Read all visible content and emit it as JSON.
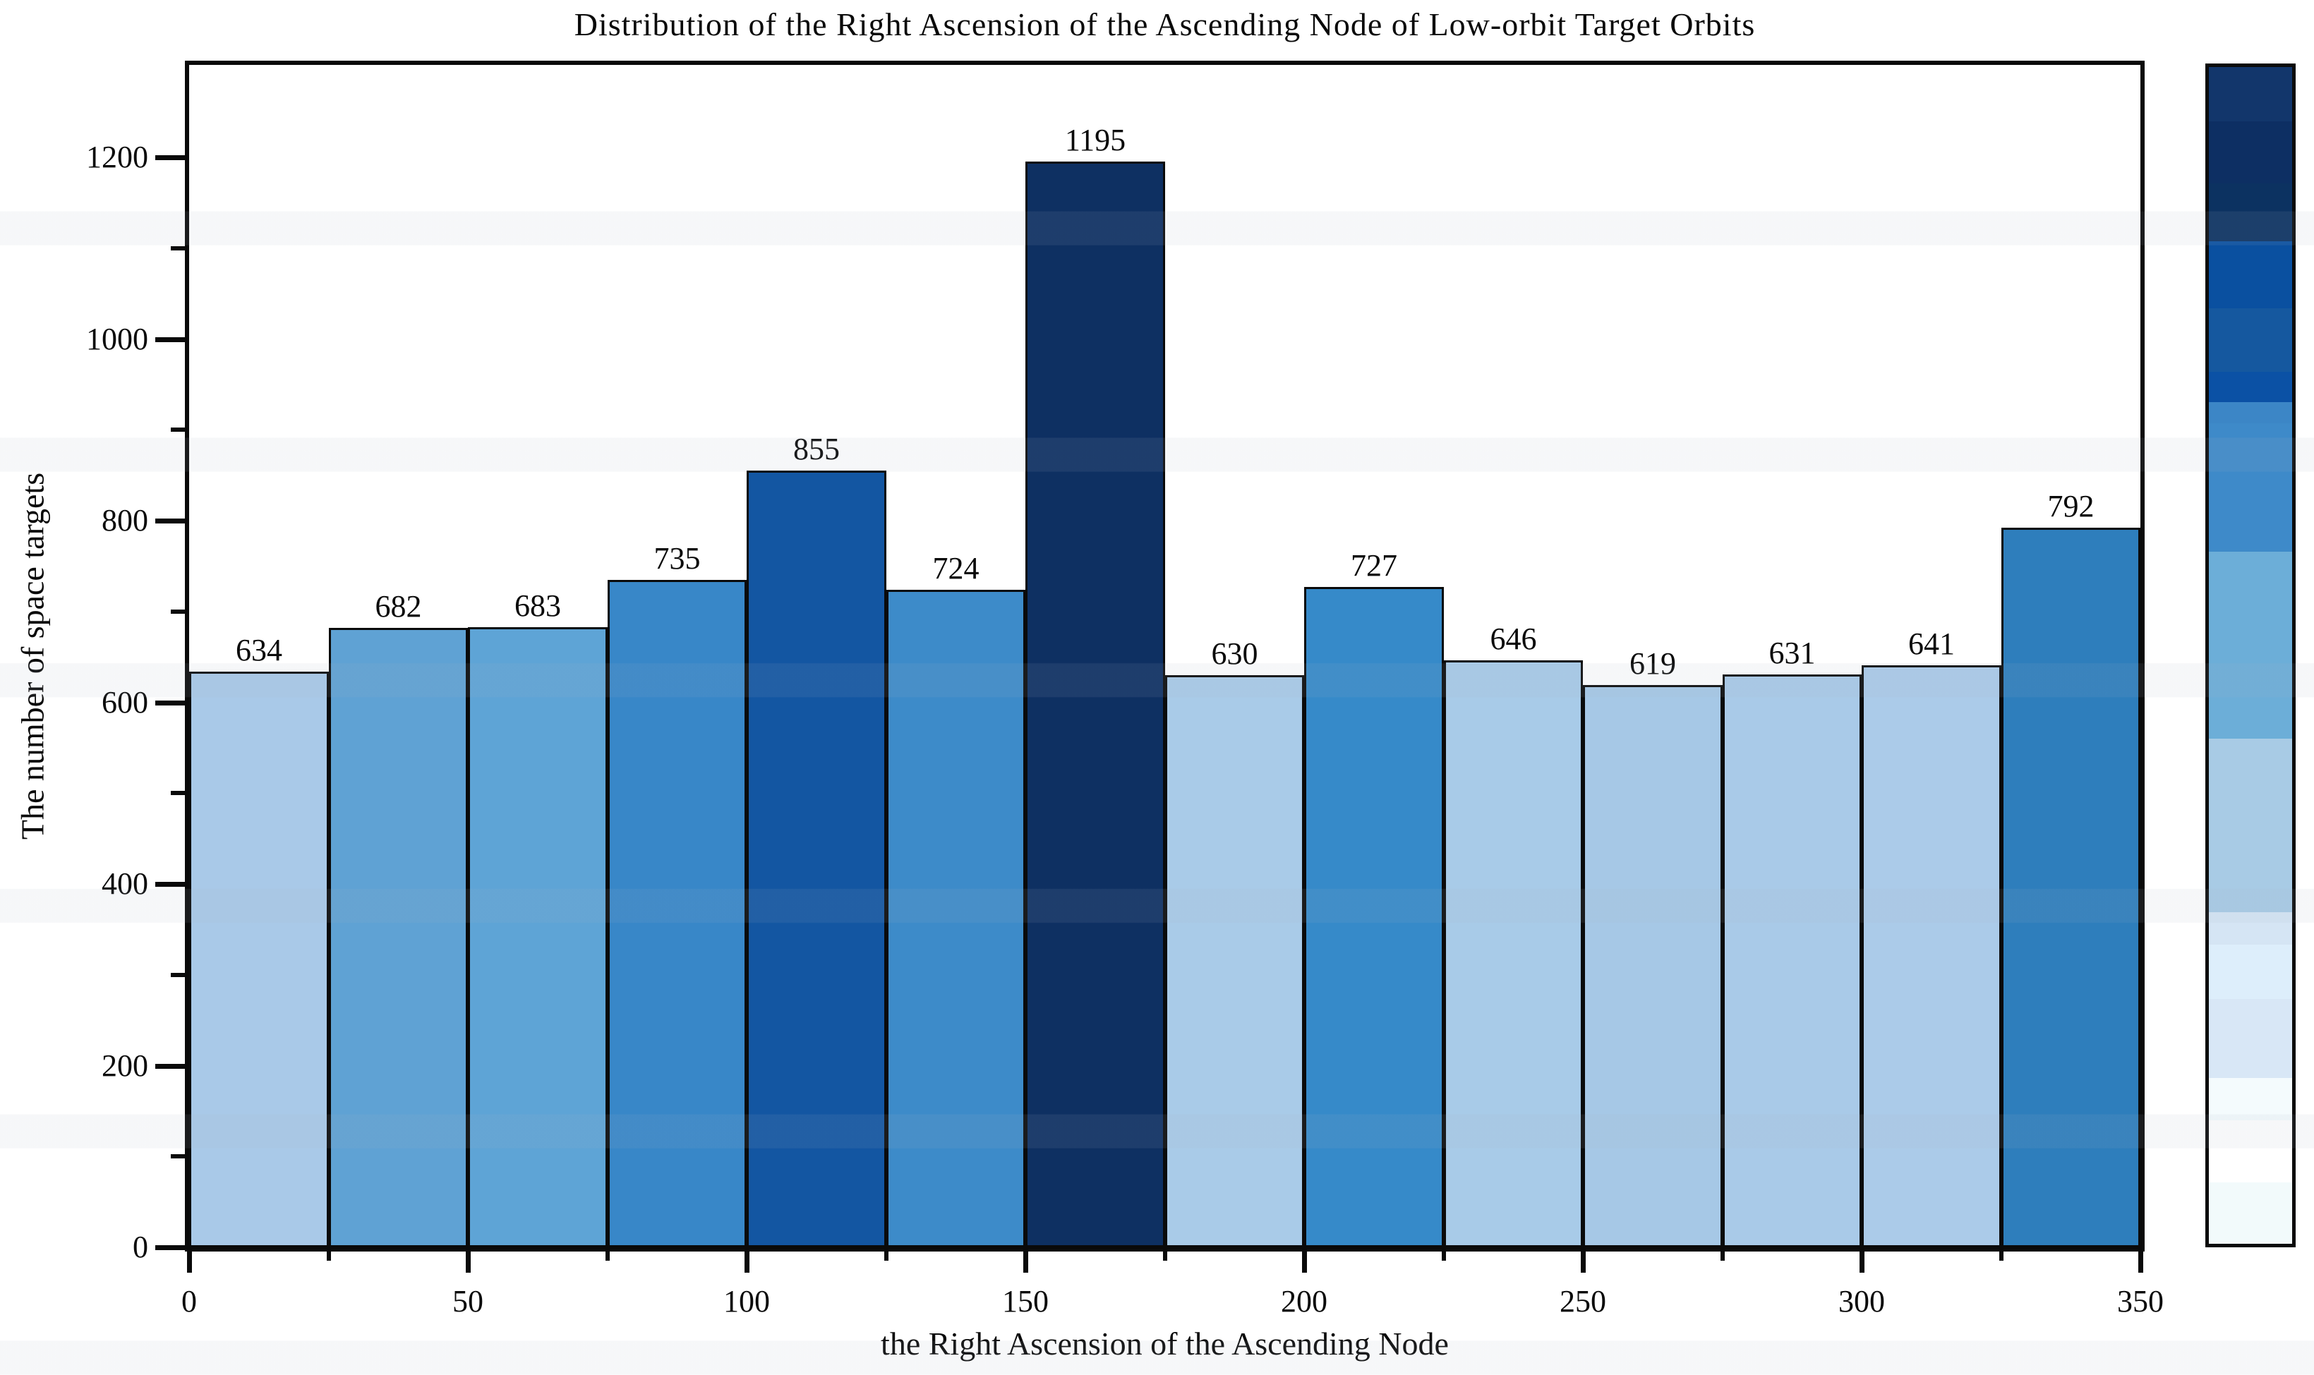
{
  "chart_data": {
    "type": "bar",
    "title": "Distribution of the Right Ascension of the Ascending Node of Low-orbit Target Orbits",
    "xlabel": "the Right Ascension of the Ascending Node",
    "ylabel": "The number of space targets",
    "bin_width": 25,
    "bin_starts": [
      0,
      25,
      50,
      75,
      100,
      125,
      150,
      175,
      200,
      225,
      250,
      275,
      300,
      325
    ],
    "values": [
      634,
      682,
      683,
      735,
      855,
      724,
      1195,
      630,
      727,
      646,
      619,
      631,
      641,
      792
    ],
    "bar_colors": [
      "#a9c9e8",
      "#5fa2d4",
      "#5ea4d6",
      "#3887c8",
      "#1356a2",
      "#3d8bc9",
      "#0e3062",
      "#a9cbe8",
      "#368ac9",
      "#a8cbe8",
      "#a6c8e6",
      "#a9cae8",
      "#abcbe9",
      "#2e7ebc"
    ],
    "xlim": [
      0,
      350
    ],
    "ylim": [
      0,
      1300
    ],
    "x_major_ticks": [
      0,
      50,
      100,
      150,
      200,
      250,
      300,
      350
    ],
    "x_minor_tick_step": 25,
    "y_major_ticks": [
      0,
      200,
      400,
      600,
      800,
      1000,
      1200
    ],
    "y_minor_tick_step": 100,
    "grid": false,
    "legend": "none",
    "value_labels_shown": true,
    "colorbar_segments": [
      {
        "color": "#12366b",
        "frac": 0.046
      },
      {
        "color": "#0d2f63",
        "frac": 0.053
      },
      {
        "color": "#0c3261",
        "frac": 0.049
      },
      {
        "color": "#0a50a0",
        "frac": 0.057
      },
      {
        "color": "#15589f",
        "frac": 0.054
      },
      {
        "color": "#0b51a5",
        "frac": 0.026
      },
      {
        "color": "#3c86c6",
        "frac": 0.018
      },
      {
        "color": "#3e8ac9",
        "frac": 0.109
      },
      {
        "color": "#6caed8",
        "frac": 0.159
      },
      {
        "color": "#a8cbe5",
        "frac": 0.147
      },
      {
        "color": "#d5e5f4",
        "frac": 0.028
      },
      {
        "color": "#ddeefb",
        "frac": 0.046
      },
      {
        "color": "#d8e7f6",
        "frac": 0.067
      },
      {
        "color": "#f4fbfd",
        "frac": 0.036
      },
      {
        "color": "#ffffff",
        "frac": 0.053
      },
      {
        "color": "#f2fafb",
        "frac": 0.052
      }
    ]
  },
  "style": {
    "background": "#ffffff",
    "axis_color": "#0a0a0a",
    "bar_edge_color": "#0a0a0a",
    "text_color": "#0a0a0a"
  }
}
